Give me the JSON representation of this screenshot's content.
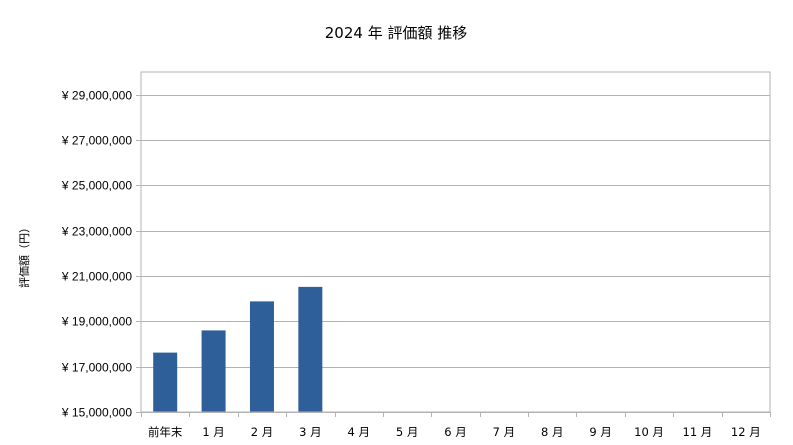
{
  "chart_data": {
    "type": "bar",
    "title": "2024 年 評価額 推移",
    "ylabel": "評価額（円）",
    "xlabel": "",
    "categories": [
      "前年末",
      "1 月",
      "2 月",
      "3 月",
      "4 月",
      "5 月",
      "6 月",
      "7 月",
      "8 月",
      "9 月",
      "10 月",
      "11 月",
      "12 月"
    ],
    "series": [
      {
        "values": [
          17620000,
          18600000,
          19880000,
          20520000,
          null,
          null,
          null,
          null,
          null,
          null,
          null,
          null,
          null
        ],
        "color": "#2f5f98"
      }
    ],
    "ylim": [
      15000000,
      30000000
    ],
    "yticks": [
      15000000,
      17000000,
      19000000,
      21000000,
      23000000,
      25000000,
      27000000,
      29000000
    ],
    "ytick_labels": [
      "¥ 15,000,000",
      "¥ 17,000,000",
      "¥ 19,000,000",
      "¥ 21,000,000",
      "¥ 23,000,000",
      "¥ 25,000,000",
      "¥ 27,000,000",
      "¥ 29,000,000"
    ],
    "grid": true,
    "legend": "none"
  }
}
